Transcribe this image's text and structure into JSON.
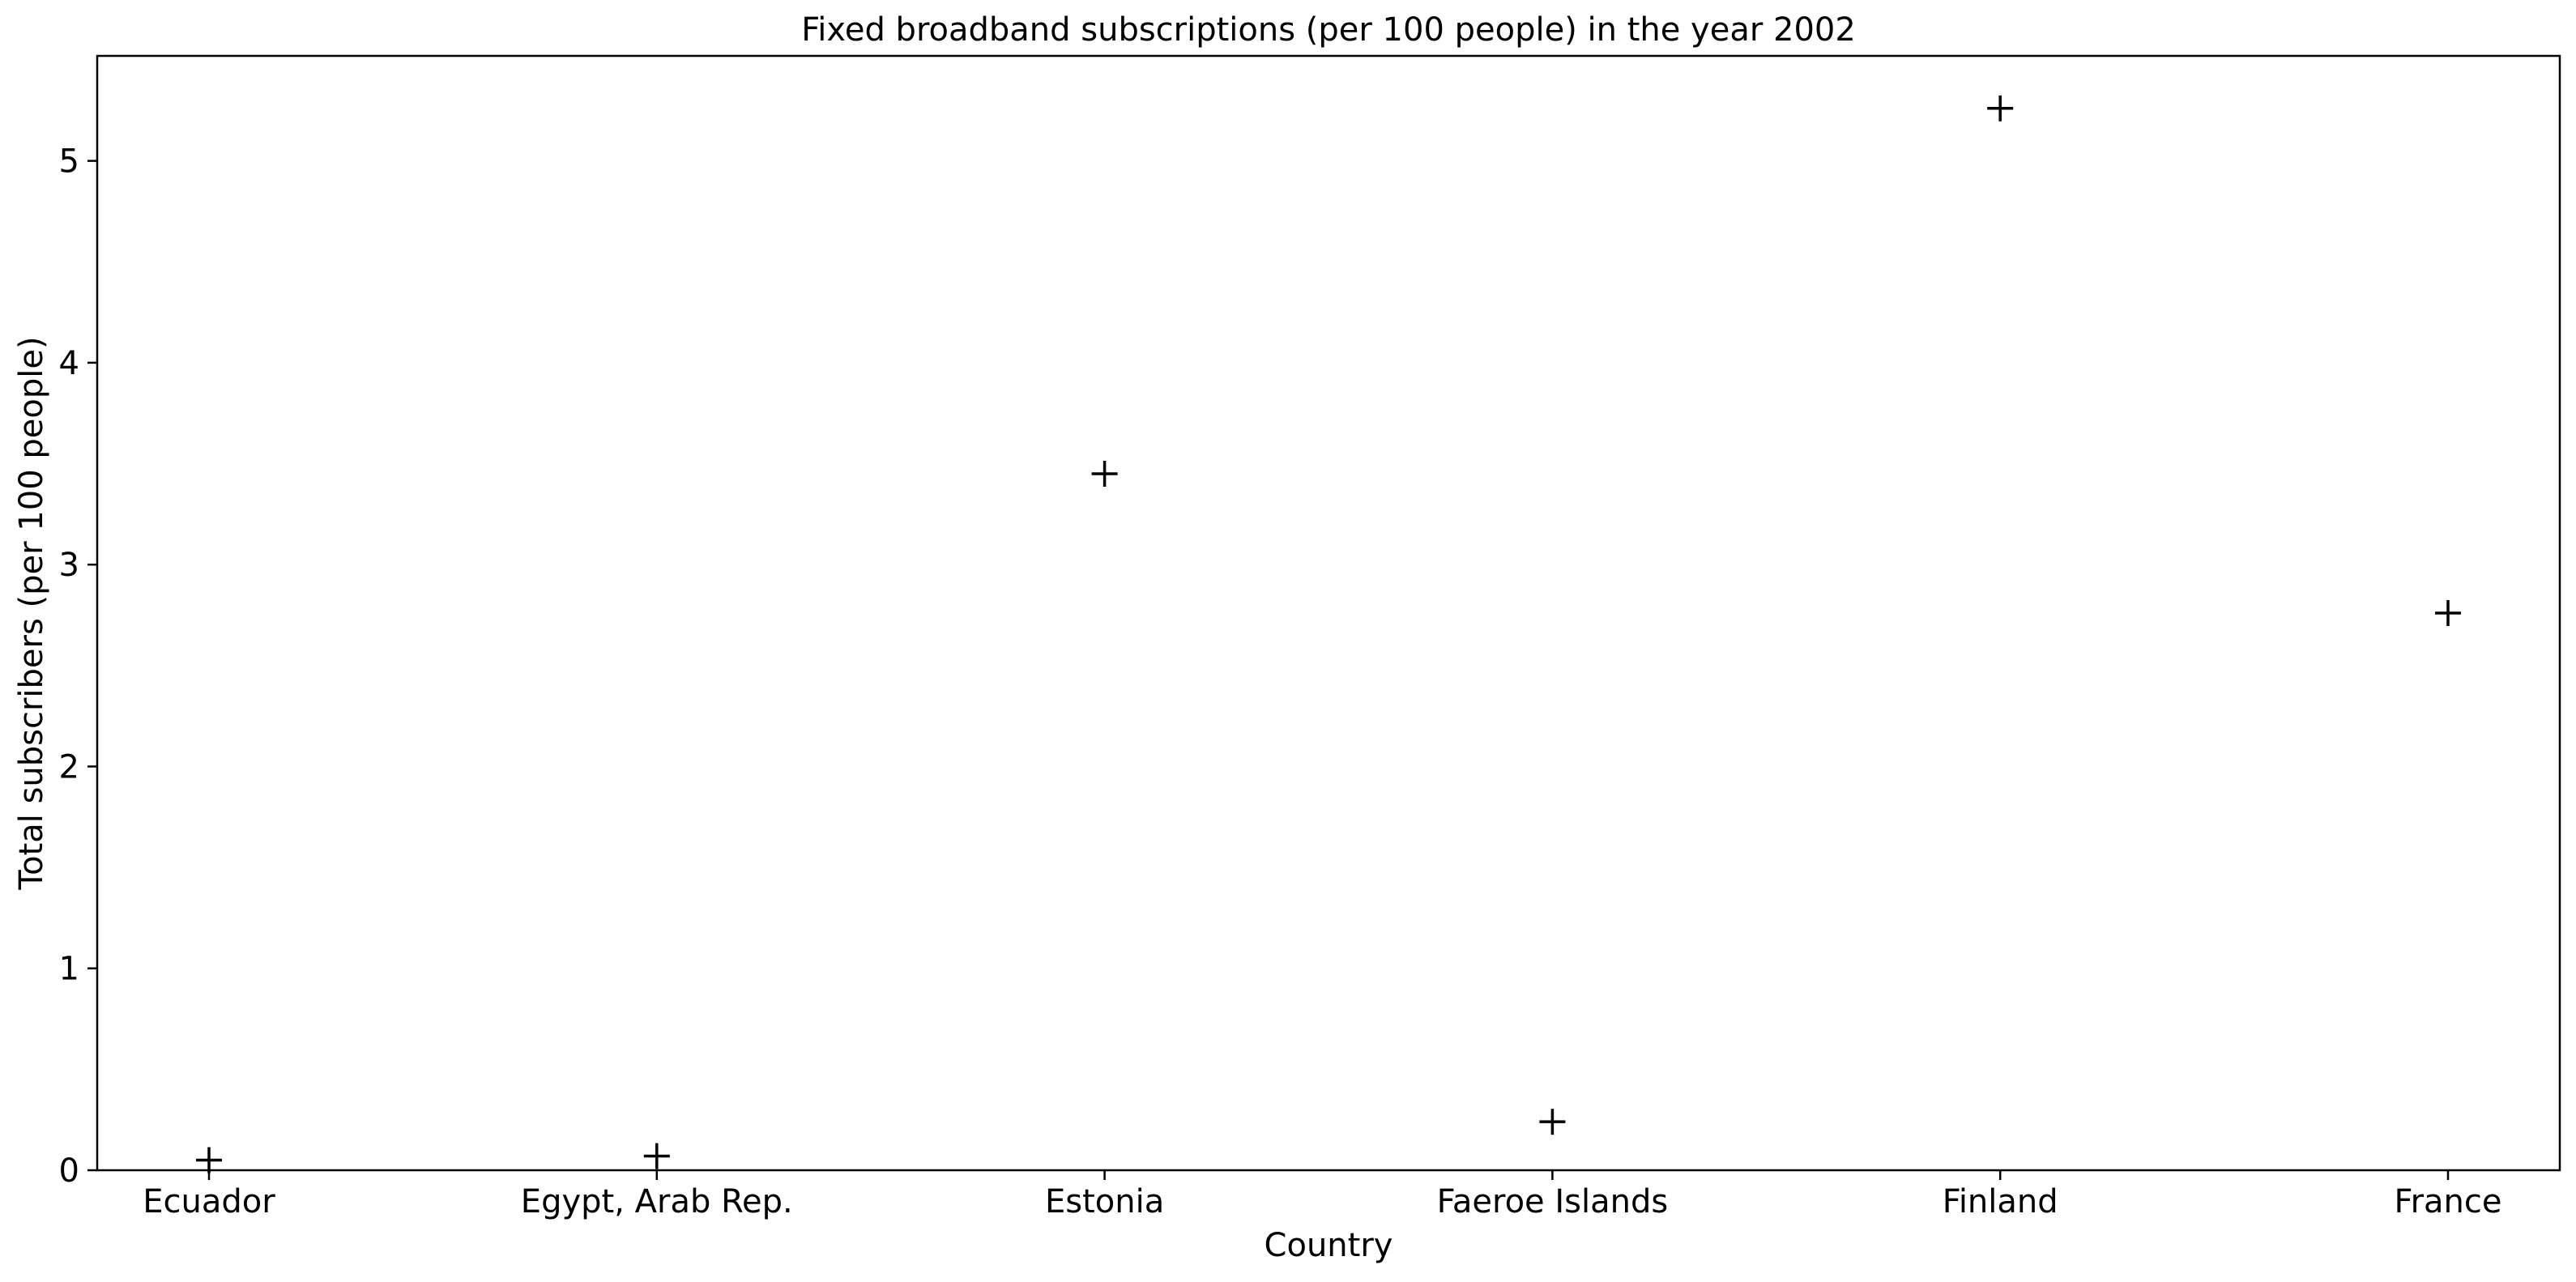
{
  "chart_data": {
    "type": "scatter",
    "title": "Fixed broadband subscriptions (per 100 people) in the year 2002",
    "xlabel": "Country",
    "ylabel": "Total subscribers (per 100 people)",
    "categories": [
      "Ecuador",
      "Egypt, Arab Rep.",
      "Estonia",
      "Faeroe Islands",
      "Finland",
      "France"
    ],
    "values": [
      0.05,
      0.07,
      3.45,
      0.24,
      5.26,
      2.76
    ],
    "ylim": [
      0,
      5.52
    ],
    "yticks": [
      0,
      1,
      2,
      3,
      4,
      5
    ],
    "marker": "+",
    "marker_color": "#000000",
    "grid": false
  }
}
